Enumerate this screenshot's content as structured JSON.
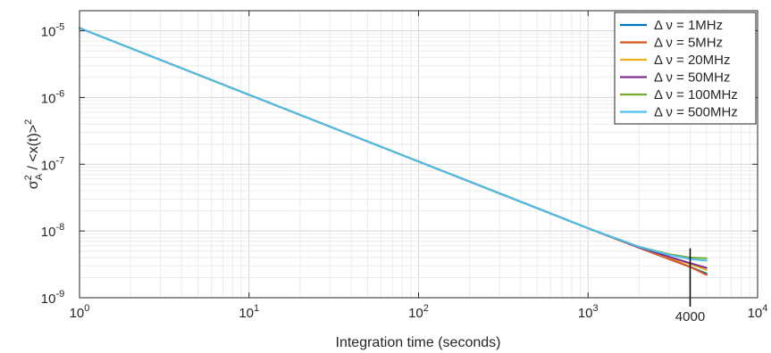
{
  "chart_data": {
    "type": "line",
    "title": "",
    "xlabel": "Integration time (seconds)",
    "ylabel": "σ_A^2 / <x(t)>^2",
    "xscale": "log",
    "yscale": "log",
    "xlim": [
      1,
      10000
    ],
    "ylim": [
      1e-09,
      2e-05
    ],
    "grid": true,
    "legend_position": "top-right",
    "x_ticks": [
      {
        "value": 1,
        "base": "10",
        "exp": "0"
      },
      {
        "value": 10,
        "base": "10",
        "exp": "1"
      },
      {
        "value": 100,
        "base": "10",
        "exp": "2"
      },
      {
        "value": 1000,
        "base": "10",
        "exp": "3"
      },
      {
        "value": 10000,
        "base": "10",
        "exp": "4"
      }
    ],
    "y_ticks": [
      {
        "value": 1e-09,
        "base": "10",
        "exp": "-9"
      },
      {
        "value": 1e-08,
        "base": "10",
        "exp": "-8"
      },
      {
        "value": 1e-07,
        "base": "10",
        "exp": "-7"
      },
      {
        "value": 1e-06,
        "base": "10",
        "exp": "-6"
      },
      {
        "value": 1e-05,
        "base": "10",
        "exp": "-5"
      }
    ],
    "annotation": {
      "x": 4000,
      "y_top": 5.5e-09,
      "label": "4000"
    },
    "series": [
      {
        "name": "Δ ν = 1MHz",
        "color": "#0072BD",
        "x": [
          1,
          10,
          100,
          1000,
          2000,
          3000,
          4000,
          5000
        ],
        "y": [
          1.1e-05,
          1.1e-06,
          1.1e-07,
          1.1e-08,
          5.6e-09,
          3.8e-09,
          2.9e-09,
          2.3e-09
        ]
      },
      {
        "name": "Δ ν = 5MHz",
        "color": "#D95319",
        "x": [
          1,
          10,
          100,
          1000,
          2000,
          3000,
          4000,
          5000
        ],
        "y": [
          1.1e-05,
          1.1e-06,
          1.1e-07,
          1.1e-08,
          5.6e-09,
          3.8e-09,
          2.9e-09,
          2.2e-09
        ]
      },
      {
        "name": "Δ ν = 20MHz",
        "color": "#EDB120",
        "x": [
          1,
          10,
          100,
          1000,
          2000,
          3000,
          4000,
          5000
        ],
        "y": [
          1.1e-05,
          1.1e-06,
          1.1e-07,
          1.1e-08,
          5.7e-09,
          4e-09,
          3.2e-09,
          2.6e-09
        ]
      },
      {
        "name": "Δ ν = 50MHz",
        "color": "#7E2F8E",
        "x": [
          1,
          10,
          100,
          1000,
          2000,
          3000,
          4000,
          5000
        ],
        "y": [
          1.1e-05,
          1.1e-06,
          1.1e-07,
          1.1e-08,
          5.7e-09,
          4.1e-09,
          3.3e-09,
          2.8e-09
        ]
      },
      {
        "name": "Δ ν = 100MHz",
        "color": "#77AC30",
        "x": [
          1,
          10,
          100,
          1000,
          2000,
          3000,
          4000,
          5000
        ],
        "y": [
          1.1e-05,
          1.1e-06,
          1.1e-07,
          1.1e-08,
          5.8e-09,
          4.5e-09,
          4e-09,
          3.9e-09
        ]
      },
      {
        "name": "Δ ν = 500MHz",
        "color": "#4DBEEE",
        "x": [
          1,
          10,
          100,
          1000,
          2000,
          3000,
          4000,
          5000
        ],
        "y": [
          1.1e-05,
          1.1e-06,
          1.1e-07,
          1.1e-08,
          5.8e-09,
          4.4e-09,
          3.8e-09,
          3.6e-09
        ]
      }
    ]
  }
}
